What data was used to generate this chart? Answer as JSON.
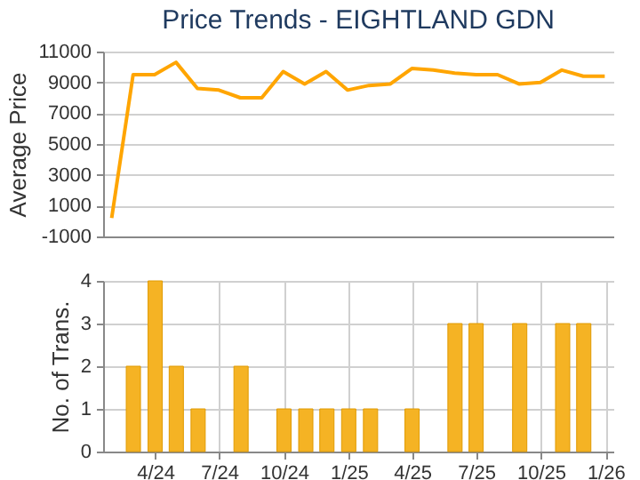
{
  "chart_data": [
    {
      "type": "line",
      "title": "Price Trends - EIGHTLAND GDN",
      "ylabel": "Average Price",
      "categories": [
        null,
        null,
        null,
        null,
        null,
        null,
        null,
        null,
        null,
        null,
        null,
        null,
        null,
        null,
        null,
        null,
        null,
        null,
        null,
        null,
        null,
        null,
        null,
        null
      ],
      "values": [
        200,
        9500,
        9500,
        10300,
        8600,
        8500,
        8000,
        8000,
        9700,
        8900,
        9700,
        8500,
        8800,
        8900,
        9900,
        9800,
        9600,
        9500,
        9500,
        8900,
        9000,
        9800,
        9400,
        9400
      ],
      "color": "#ffa500",
      "ylim": [
        -1000,
        11000
      ],
      "yticks": [
        -1000,
        1000,
        3000,
        5000,
        7000,
        9000,
        11000
      ],
      "grid": "y",
      "tick_labels": "y",
      "marker": "none"
    },
    {
      "type": "bar",
      "ylabel": "No. of Trans.",
      "x": [
        "2024-03",
        "2024-04",
        "2024-05",
        "2024-06",
        "2024-08",
        "2024-10",
        "2024-11",
        "2024-12",
        "2025-01",
        "2025-02",
        "2025-04",
        "2025-06",
        "2025-07",
        "2025-09",
        "2025-11",
        "2025-12"
      ],
      "values": [
        2,
        4,
        2,
        1,
        2,
        1,
        1,
        1,
        1,
        1,
        1,
        3,
        3,
        3,
        3,
        3
      ],
      "color": "#f5b324",
      "xlim": [
        "2024-01-18",
        "2026-01-12"
      ],
      "xticks": [
        {
          "value": "2024-04",
          "label": "4/24"
        },
        {
          "value": "2024-07",
          "label": "7/24"
        },
        {
          "value": "2024-10",
          "label": "10/24"
        },
        {
          "value": "2025-01",
          "label": "1/25"
        },
        {
          "value": "2025-04",
          "label": "4/25"
        },
        {
          "value": "2025-07",
          "label": "7/25"
        },
        {
          "value": "2025-10",
          "label": "10/25"
        },
        {
          "value": "2026-01",
          "label": "1/26"
        }
      ],
      "ylim": [
        0,
        4
      ],
      "yticks": [
        0,
        1,
        2,
        3,
        4
      ],
      "grid": true
    }
  ]
}
